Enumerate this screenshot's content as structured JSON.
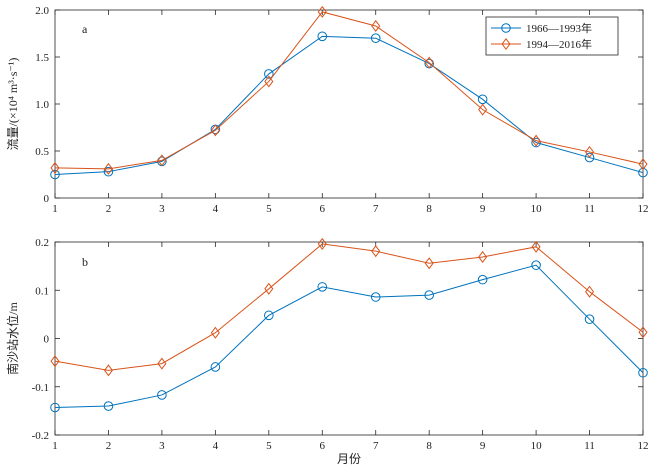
{
  "chart_data": [
    {
      "type": "line",
      "panel_label": "a",
      "x": [
        1,
        2,
        3,
        4,
        5,
        6,
        7,
        8,
        9,
        10,
        11,
        12
      ],
      "xlim": [
        1,
        12
      ],
      "ylim": [
        0,
        2.0
      ],
      "yticks": [
        "0",
        "0.5",
        "1.0",
        "1.5",
        "2.0"
      ],
      "xticks": [
        "1",
        "2",
        "3",
        "4",
        "5",
        "6",
        "7",
        "8",
        "9",
        "10",
        "11",
        "12"
      ],
      "ylabel": "流量/(×10⁴ m³·s⁻¹)",
      "xlabel": "",
      "legend_position": "top-right",
      "series": [
        {
          "name": "1966—1993年",
          "color": "#0072BD",
          "marker": "circle",
          "values": [
            0.25,
            0.28,
            0.39,
            0.73,
            1.32,
            1.72,
            1.7,
            1.43,
            1.05,
            0.59,
            0.43,
            0.27
          ]
        },
        {
          "name": "1994—2016年",
          "color": "#D95319",
          "marker": "diamond",
          "values": [
            0.32,
            0.31,
            0.4,
            0.72,
            1.24,
            1.98,
            1.83,
            1.44,
            0.94,
            0.61,
            0.49,
            0.36
          ]
        }
      ]
    },
    {
      "type": "line",
      "panel_label": "b",
      "x": [
        1,
        2,
        3,
        4,
        5,
        6,
        7,
        8,
        9,
        10,
        11,
        12
      ],
      "xlim": [
        1,
        12
      ],
      "ylim": [
        -0.2,
        0.2
      ],
      "yticks": [
        "-0.2",
        "-0.1",
        "0",
        "0.1",
        "0.2"
      ],
      "xticks": [
        "1",
        "2",
        "3",
        "4",
        "5",
        "6",
        "7",
        "8",
        "9",
        "10",
        "11",
        "12"
      ],
      "ylabel": "南沙站水位/m",
      "xlabel": "月份",
      "series": [
        {
          "name": "1966—1993年",
          "color": "#0072BD",
          "marker": "circle",
          "values": [
            -0.143,
            -0.14,
            -0.117,
            -0.059,
            0.048,
            0.107,
            0.086,
            0.09,
            0.122,
            0.152,
            0.04,
            -0.071
          ]
        },
        {
          "name": "1994—2016年",
          "color": "#D95319",
          "marker": "diamond",
          "values": [
            -0.047,
            -0.066,
            -0.052,
            0.012,
            0.103,
            0.196,
            0.181,
            0.156,
            0.169,
            0.19,
            0.097,
            0.013
          ]
        }
      ]
    }
  ]
}
